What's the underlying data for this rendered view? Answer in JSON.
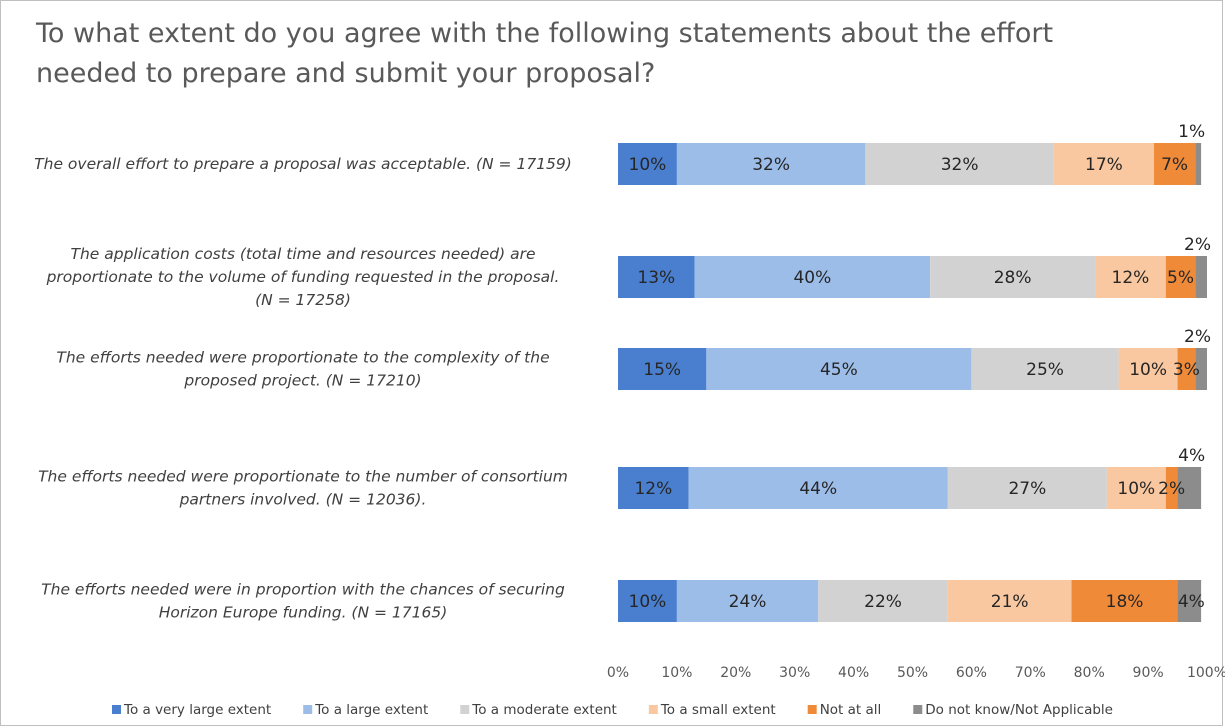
{
  "title": "To what extent do you agree with the following statements about the effort needed to prepare and submit your proposal?",
  "colors": {
    "very_large": "#4a7fcf",
    "large": "#9dbde9",
    "moderate": "#d2d2d2",
    "small": "#f9c8a0",
    "not_at_all": "#ef8a39",
    "dont_know": "#8c8c8c"
  },
  "chart_data": {
    "type": "bar",
    "orientation": "horizontal",
    "stacked": true,
    "xlim": [
      0,
      100
    ],
    "x_ticks": [
      "0%",
      "10%",
      "20%",
      "30%",
      "40%",
      "50%",
      "60%",
      "70%",
      "80%",
      "90%",
      "100%"
    ],
    "grid": false,
    "legend_position": "bottom",
    "categories": [
      [
        "The overall effort to prepare a proposal was acceptable. (N = 17159)"
      ],
      [
        "The application costs (total time and resources needed) are",
        "proportionate to the volume of funding requested in the proposal.",
        "(N = 17258)"
      ],
      [
        "The efforts needed were proportionate to the complexity of the",
        "proposed project. (N = 17210)"
      ],
      [
        "The efforts needed were proportionate to the number of consortium",
        "partners involved. (N = 12036)."
      ],
      [
        "The efforts needed were in proportion with the chances of securing",
        "Horizon Europe funding. (N = 17165)"
      ]
    ],
    "series": [
      {
        "name": "To a very large extent",
        "color_key": "very_large",
        "values": [
          10,
          13,
          15,
          12,
          10
        ]
      },
      {
        "name": "To a large extent",
        "color_key": "large",
        "values": [
          32,
          40,
          45,
          44,
          24
        ]
      },
      {
        "name": "To a moderate extent",
        "color_key": "moderate",
        "values": [
          32,
          28,
          25,
          27,
          22
        ]
      },
      {
        "name": "To a small extent",
        "color_key": "small",
        "values": [
          17,
          12,
          10,
          10,
          21
        ]
      },
      {
        "name": "Not at all",
        "color_key": "not_at_all",
        "values": [
          7,
          5,
          3,
          2,
          18
        ]
      },
      {
        "name": "Do not know/Not Applicable",
        "color_key": "dont_know",
        "values": [
          1,
          2,
          2,
          4,
          4
        ]
      }
    ]
  }
}
